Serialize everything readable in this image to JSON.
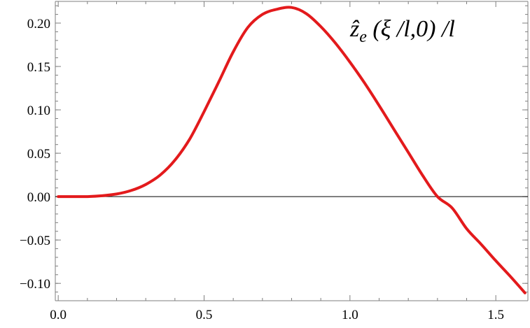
{
  "chart_data": {
    "type": "line",
    "title": "",
    "xlabel": "",
    "ylabel": "",
    "xlim": [
      -0.01,
      1.61
    ],
    "ylim": [
      -0.12,
      0.225
    ],
    "x_ticks": [
      {
        "value": 0.0,
        "label": "0.0"
      },
      {
        "value": 0.5,
        "label": "0.5"
      },
      {
        "value": 1.0,
        "label": "1.0"
      },
      {
        "value": 1.5,
        "label": "1.5"
      }
    ],
    "y_ticks": [
      {
        "value": 0.2,
        "label": "0.20"
      },
      {
        "value": 0.15,
        "label": "0.15"
      },
      {
        "value": 0.1,
        "label": "0.10"
      },
      {
        "value": 0.05,
        "label": "0.05"
      },
      {
        "value": 0.0,
        "label": "0.00"
      },
      {
        "value": -0.05,
        "label": "−0.05"
      },
      {
        "value": -0.1,
        "label": "−0.10"
      }
    ],
    "grid": false,
    "zero_line": true,
    "series": [
      {
        "name": "ẑe (ξ /l,0) /l",
        "color": "#e31a1c",
        "x": [
          0.0,
          0.05,
          0.1,
          0.15,
          0.2,
          0.25,
          0.3,
          0.35,
          0.4,
          0.45,
          0.5,
          0.55,
          0.6,
          0.65,
          0.7,
          0.75,
          0.8,
          0.85,
          0.9,
          0.95,
          1.0,
          1.05,
          1.1,
          1.15,
          1.2,
          1.25,
          1.3,
          1.35,
          1.4,
          1.45,
          1.5,
          1.55,
          1.6
        ],
        "y": [
          0.0,
          0.0,
          0.0,
          0.001,
          0.003,
          0.007,
          0.014,
          0.025,
          0.042,
          0.066,
          0.098,
          0.132,
          0.167,
          0.195,
          0.21,
          0.216,
          0.218,
          0.211,
          0.196,
          0.177,
          0.155,
          0.131,
          0.105,
          0.078,
          0.051,
          0.024,
          0.0,
          -0.013,
          -0.037,
          -0.055,
          -0.074,
          -0.092,
          -0.111
        ]
      }
    ]
  },
  "legend_text": {
    "z_hat": "ẑ",
    "sub_e": "e",
    "rest": " (ξ /l,0) /l"
  }
}
